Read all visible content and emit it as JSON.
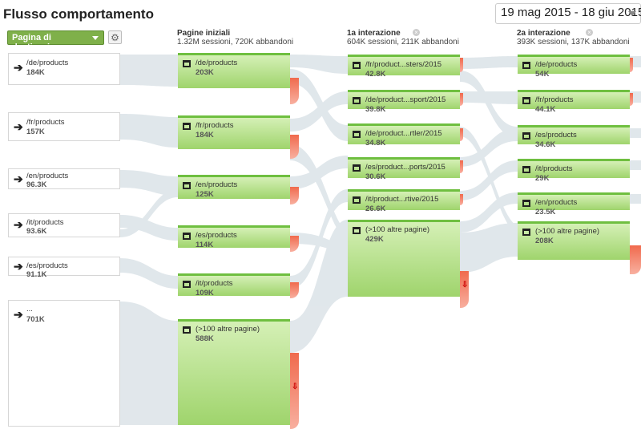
{
  "header": {
    "title": "Flusso comportamento",
    "date_range": "19 mag 2015 - 18 giu 2015"
  },
  "toolbar": {
    "dimension_label": "Pagina di destinazione"
  },
  "columns": [
    {
      "label": "Pagine iniziali",
      "stats": "1.32M sessioni, 720K abbandoni"
    },
    {
      "label": "1a interazione",
      "stats": "604K sessioni, 211K abbandoni"
    },
    {
      "label": "2a interazione",
      "stats": "393K sessioni, 137K abbandoni"
    }
  ],
  "sources": [
    {
      "name": "/de/products",
      "value": "184K"
    },
    {
      "name": "/fr/products",
      "value": "157K"
    },
    {
      "name": "/en/products",
      "value": "96.3K"
    },
    {
      "name": "/it/products",
      "value": "93.6K"
    },
    {
      "name": "/es/products",
      "value": "91.1K"
    },
    {
      "name": "...",
      "value": "701K"
    }
  ],
  "start_pages": [
    {
      "name": "/de/products",
      "value": "203K"
    },
    {
      "name": "/fr/products",
      "value": "184K"
    },
    {
      "name": "/en/products",
      "value": "125K"
    },
    {
      "name": "/es/products",
      "value": "114K"
    },
    {
      "name": "/it/products",
      "value": "109K"
    },
    {
      "name": "(>100 altre pagine)",
      "value": "588K"
    }
  ],
  "first_interaction": [
    {
      "name": "/fr/product...sters/2015",
      "value": "42.8K"
    },
    {
      "name": "/de/product...sport/2015",
      "value": "39.8K"
    },
    {
      "name": "/de/product...rtler/2015",
      "value": "34.8K"
    },
    {
      "name": "/es/product...ports/2015",
      "value": "30.6K"
    },
    {
      "name": "/it/product...rtive/2015",
      "value": "26.6K"
    },
    {
      "name": "(>100 altre pagine)",
      "value": "429K"
    }
  ],
  "second_interaction": [
    {
      "name": "/de/products",
      "value": "54K"
    },
    {
      "name": "/fr/products",
      "value": "44.1K"
    },
    {
      "name": "/es/products",
      "value": "34.6K"
    },
    {
      "name": "/it/products",
      "value": "29K"
    },
    {
      "name": "/en/products",
      "value": "23.5K"
    },
    {
      "name": "(>100 altre pagine)",
      "value": "208K"
    }
  ]
}
